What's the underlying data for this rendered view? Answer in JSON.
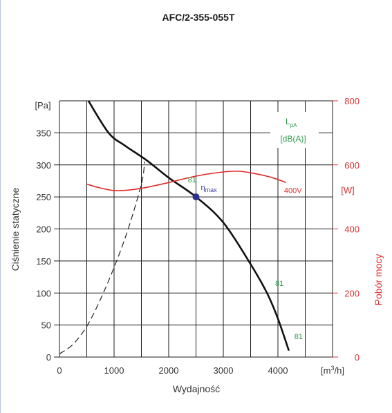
{
  "chart_data": {
    "type": "line",
    "title": "AFC/2-355-055T",
    "xlabel": "Wydajność",
    "x_unit": "[m³/h]",
    "ylabel": "Ciśnienie statyczne",
    "y_unit": "[Pa]",
    "y2label": "Pobór mocy",
    "y2_unit": "[W]",
    "xlim": [
      0,
      5000
    ],
    "ylim": [
      0,
      400
    ],
    "y2lim": [
      0,
      800
    ],
    "x_ticks": [
      0,
      1000,
      2000,
      3000,
      4000
    ],
    "y_ticks": [
      0,
      50,
      100,
      150,
      200,
      250,
      300,
      350
    ],
    "y2_ticks": [
      0,
      200,
      400,
      600,
      800
    ],
    "grid": true,
    "noise_box": {
      "line1": "L",
      "sub": "pA",
      "line2": "[dB(A)]"
    },
    "series": [
      {
        "name": "",
        "kind": "pressure",
        "x": [
          530,
          900,
          1200,
          1600,
          2000,
          2500,
          3000,
          3500,
          3800,
          4000,
          4200
        ],
        "y": [
          400,
          350,
          330,
          307,
          280,
          250,
          210,
          145,
          100,
          60,
          10
        ]
      },
      {
        "name": "",
        "kind": "system-curve",
        "x": [
          0,
          250,
          500,
          750,
          1000,
          1250,
          1500,
          1560
        ],
        "y": [
          5,
          20,
          48,
          90,
          140,
          198,
          270,
          305
        ]
      },
      {
        "name": "400V",
        "kind": "power",
        "x": [
          500,
          700,
          1000,
          1300,
          1600,
          2000,
          2500,
          3000,
          3300,
          3600,
          3900,
          4150
        ],
        "y": [
          540,
          530,
          520,
          522,
          530,
          545,
          565,
          578,
          580,
          572,
          560,
          545
        ]
      }
    ],
    "annotations": [
      {
        "text": "81",
        "x": 2350,
        "y": 273
      },
      {
        "text": "81",
        "x": 3950,
        "y": 111
      },
      {
        "text": "81",
        "x": 4300,
        "y": 28
      },
      {
        "text": "η",
        "sub": "max",
        "x": 2500,
        "y": 250
      }
    ]
  }
}
